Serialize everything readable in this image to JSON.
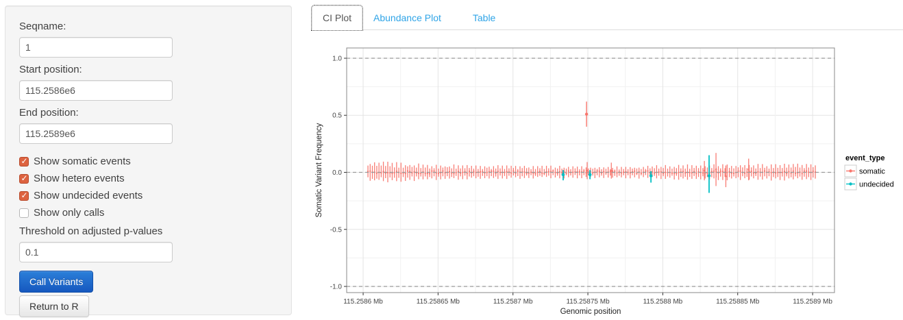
{
  "sidebar": {
    "fields": [
      {
        "label": "Seqname:",
        "value": "1"
      },
      {
        "label": "Start position:",
        "value": "115.2586e6"
      },
      {
        "label": "End position:",
        "value": "115.2589e6"
      }
    ],
    "checkboxes": [
      {
        "label": "Show somatic events",
        "checked": true
      },
      {
        "label": "Show hetero events",
        "checked": true
      },
      {
        "label": "Show undecided events",
        "checked": true
      },
      {
        "label": "Show only calls",
        "checked": false
      }
    ],
    "threshold": {
      "label": "Threshold on adjusted p-values",
      "value": "0.1"
    },
    "buttons": {
      "call_variants": "Call Variants",
      "return_to_r": "Return to R"
    }
  },
  "tabs": [
    {
      "label": "CI Plot",
      "active": true
    },
    {
      "label": "Abundance Plot",
      "active": false
    },
    {
      "label": "Table",
      "active": false
    }
  ],
  "chart_data": {
    "type": "scatter",
    "subtype": "pointrange-ci",
    "title": "",
    "xlabel": "Genomic position",
    "ylabel": "Somatic Variant Frequency",
    "xlim": [
      115.258589,
      115.2589146
    ],
    "ylim": [
      -1.054,
      1.09
    ],
    "x_tick_values": [
      115.2586,
      115.25865,
      115.2587,
      115.25875,
      115.2588,
      115.25885,
      115.2589
    ],
    "x_tick_labels": [
      "115.2586 Mb",
      "115.25865 Mb",
      "115.2587 Mb",
      "115.25875 Mb",
      "115.2588 Mb",
      "115.25885 Mb",
      "115.2589 Mb"
    ],
    "y_tick_values": [
      1.0,
      0.5,
      0.0,
      -0.5,
      -1.0
    ],
    "y_tick_labels": [
      "1.0",
      "0.5",
      "0.0",
      "-0.5",
      "-1.0"
    ],
    "hlines_dashed": [
      1.0,
      0.0,
      -1.0
    ],
    "grid": true,
    "legend": {
      "position": "right",
      "title": "event_type",
      "entries": [
        {
          "label": "somatic",
          "color": "#F8766D"
        },
        {
          "label": "undecided",
          "color": "#00BFC4"
        }
      ]
    },
    "colors": {
      "somatic": "#F8766D",
      "undecided": "#00BFC4",
      "dashed_line": "#999999"
    },
    "somatic_band": {
      "comment": "dense row of somatic CI pointranges centered on 0 across the whole region",
      "x_start_mb": 115.2586032,
      "x_end_mb": 115.2589018,
      "n_bars": 204,
      "center": 0.0,
      "envelope_halfwidth": [
        [
          0.0,
          0.086
        ],
        [
          0.06,
          0.078
        ],
        [
          0.14,
          0.064
        ],
        [
          0.25,
          0.057
        ],
        [
          0.4,
          0.05
        ],
        [
          0.55,
          0.046
        ],
        [
          0.62,
          0.05
        ],
        [
          0.7,
          0.06
        ],
        [
          0.78,
          0.066
        ],
        [
          0.88,
          0.064
        ],
        [
          1.0,
          0.068
        ]
      ],
      "spikes": [
        {
          "t": 0.49,
          "hi": 0.09,
          "lo": -0.06
        },
        {
          "t": 0.544,
          "hi": 0.085,
          "lo": -0.055
        },
        {
          "t": 0.752,
          "hi": 0.1,
          "lo": -0.07
        },
        {
          "t": 0.778,
          "hi": 0.17,
          "lo": -0.12
        },
        {
          "t": 0.8,
          "hi": 0.06,
          "lo": -0.13
        },
        {
          "t": 0.851,
          "hi": 0.12,
          "lo": -0.07
        }
      ]
    },
    "somatic_outliers": [
      {
        "x_mb": 115.2587491,
        "y": 0.51,
        "lo": 0.4,
        "hi": 0.62
      }
    ],
    "undecided_points": [
      {
        "x_mb": 115.2587335,
        "y": -0.02,
        "lo": -0.07,
        "hi": 0.02
      },
      {
        "x_mb": 115.2587514,
        "y": -0.02,
        "lo": -0.06,
        "hi": 0.02
      },
      {
        "x_mb": 115.2587921,
        "y": -0.03,
        "lo": -0.09,
        "hi": 0.01
      },
      {
        "x_mb": 115.2588309,
        "y": -0.03,
        "lo": -0.18,
        "hi": 0.15
      }
    ]
  }
}
